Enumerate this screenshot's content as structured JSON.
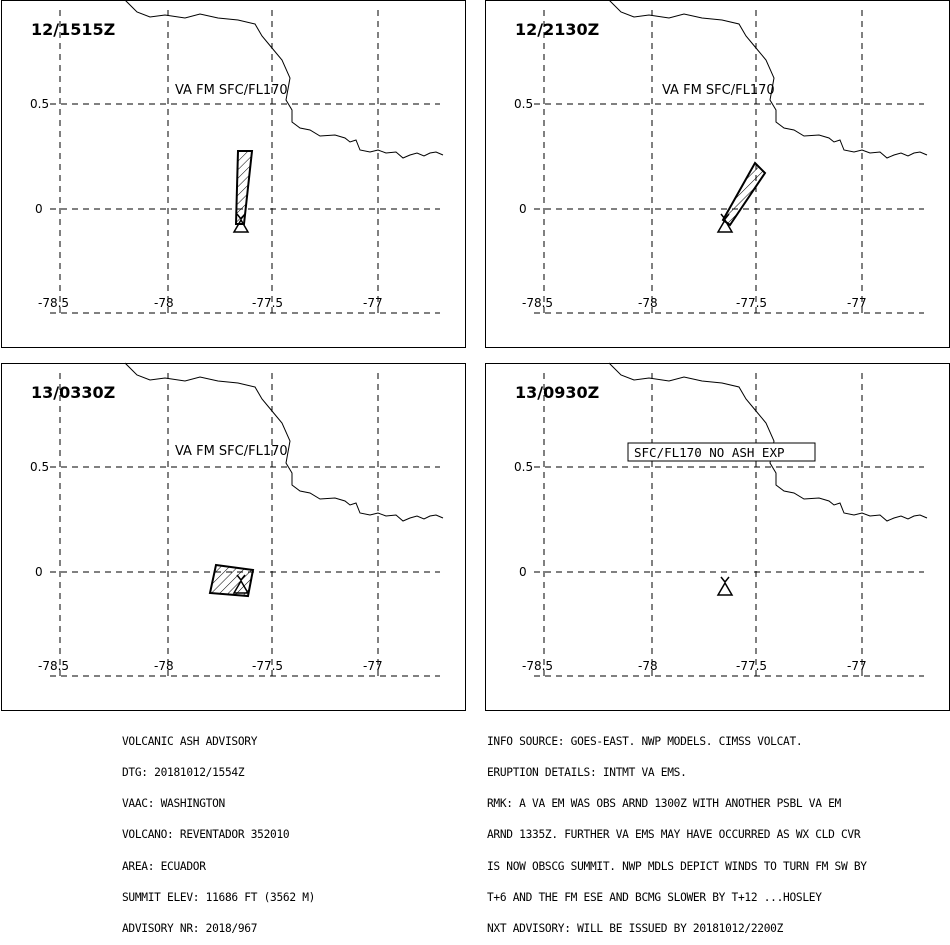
{
  "colors": {
    "line": "#000000",
    "background": "#ffffff"
  },
  "axis": {
    "y_ticks": [
      "0.5",
      "0"
    ],
    "x_ticks": [
      "-78.5",
      "-78",
      "-77.5",
      "-77"
    ]
  },
  "panels": [
    {
      "time": "12/1515Z",
      "label": "VA FM SFC/FL170",
      "label_boxed": false,
      "ash": "plume_north"
    },
    {
      "time": "12/2130Z",
      "label": "VA FM SFC/FL170",
      "label_boxed": false,
      "ash": "plume_northeast"
    },
    {
      "time": "13/0330Z",
      "label": "VA FM SFC/FL170",
      "label_boxed": false,
      "ash": "patch_west"
    },
    {
      "time": "13/0930Z",
      "label": "SFC/FL170 NO ASH EXP",
      "label_boxed": true,
      "ash": "none"
    }
  ],
  "advisory_left": [
    "VOLCANIC ASH ADVISORY",
    "DTG: 20181012/1554Z",
    "VAAC: WASHINGTON",
    "VOLCANO: REVENTADOR 352010",
    "AREA: ECUADOR",
    "SUMMIT ELEV: 11686 FT (3562 M)",
    "ADVISORY NR: 2018/967"
  ],
  "advisory_right": [
    "INFO SOURCE: GOES-EAST. NWP MODELS. CIMSS VOLCAT.",
    "ERUPTION DETAILS: INTMT VA EMS.",
    "RMK: A VA EM WAS OBS ARND 1300Z WITH ANOTHER PSBL VA EM",
    "ARND 1335Z. FURTHER VA EMS MAY HAVE OCCURRED AS WX CLD CVR",
    "IS NOW OBSCG SUMMIT. NWP MDLS DEPICT WINDS TO TURN FM SW BY",
    "T+6 AND THE FM ESE AND BCMG SLOWER BY T+12 ...HOSLEY",
    "NXT ADVISORY: WILL BE ISSUED BY 20181012/2200Z"
  ]
}
